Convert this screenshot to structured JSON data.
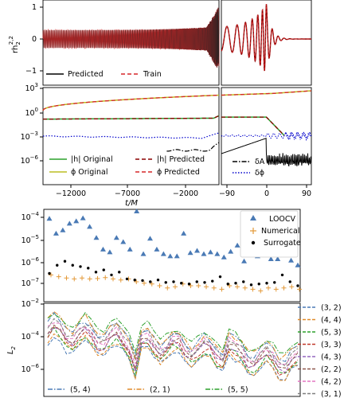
{
  "chart_data": [
    {
      "panel": "top-left",
      "type": "line",
      "ylabel": "rh_2^{2,2}",
      "ylim": [
        -1.5,
        1.4
      ],
      "yticks": [
        "1",
        "0",
        "−1"
      ],
      "series": [
        {
          "name": "Predicted",
          "style": "solid",
          "color": "#000000"
        },
        {
          "name": "Train",
          "style": "dashed",
          "color": "#d62728"
        }
      ]
    },
    {
      "panel": "top-right",
      "type": "line",
      "ylim": [
        -1.5,
        1.4
      ],
      "description_values": {
        "peak_amplitude": 1.1,
        "ringdown_after_t": 20
      }
    },
    {
      "panel": "middle-left",
      "type": "line",
      "yscale": "log",
      "ylim": [
        1e-08,
        1000.0
      ],
      "yticks": [
        "10^3",
        "10^0",
        "10^-3",
        "10^-6"
      ],
      "xticks": [
        "−12000",
        "−7000",
        "−2000"
      ],
      "xlabel": "t/M",
      "series": [
        {
          "name": "|h| Original",
          "style": "solid",
          "color": "#2ca02c"
        },
        {
          "name": "ϕ Original",
          "style": "solid",
          "color": "#bcbd22"
        },
        {
          "name": "|h| Predicted",
          "style": "dashed",
          "color": "#8b0000"
        },
        {
          "name": "ϕ Predicted",
          "style": "dashed",
          "color": "#d62728"
        }
      ]
    },
    {
      "panel": "middle-right",
      "type": "line",
      "yscale": "log",
      "xticks": [
        "−90",
        "0",
        "90"
      ],
      "series": [
        {
          "name": "δA",
          "style": "dashdot",
          "color": "#000000"
        },
        {
          "name": "δϕ",
          "style": "dotted",
          "color": "#0000cc"
        }
      ]
    },
    {
      "panel": "bottom-upper",
      "type": "scatter",
      "yscale": "log",
      "yticks": [
        "10^-4",
        "10^-5",
        "10^-6",
        "10^-7"
      ],
      "series": [
        {
          "name": "LOOCV",
          "marker": "triangle",
          "color": "#4a7ab5",
          "values": [
            9e-05,
            2e-05,
            2.8e-05,
            5.5e-05,
            7e-05,
            9.5e-05,
            4e-05,
            1.3e-05,
            4e-06,
            3e-06,
            1.3e-05,
            8.5e-06,
            4e-06,
            0.00019,
            2.5e-06,
            1.2e-05,
            4e-06,
            2.5e-06,
            2e-06,
            2e-06,
            2e-05,
            2.8e-06,
            3.5e-06,
            2.5e-06,
            3e-06,
            2.5e-06,
            1.8e-06,
            3.2e-06,
            6e-06,
            1.2e-06,
            4e-06,
            2e-06,
            6e-06,
            1.5e-06,
            1.5e-06,
            2.5e-06,
            1.3e-06,
            8e-07
          ]
        },
        {
          "name": "Numerical",
          "marker": "plus",
          "color": "#e39a3a",
          "values": [
            3e-07,
            2.5e-07,
            2.2e-07,
            2e-07,
            2.2e-07,
            2e-07,
            2.1e-07,
            2.3e-07,
            2e-07,
            1.8e-07,
            2e-07,
            1.5e-07,
            1.3e-07,
            1.2e-07,
            1e-07,
            8e-08,
            9e-08,
            1.2e-07,
            1e-07,
            1e-07,
            9e-08,
            8e-08,
            7e-08,
            1e-07,
            9e-08,
            8e-08,
            7e-08,
            6e-08,
            8e-08,
            7e-08,
            8e-08,
            9e-08,
            7e-08
          ]
        },
        {
          "name": "Surrogate",
          "marker": "dot",
          "color": "#000000",
          "values": [
            3.5e-07,
            8e-07,
            1.2e-06,
            8e-07,
            7e-07,
            6e-07,
            4e-07,
            5e-07,
            3e-07,
            4e-07,
            2e-07,
            1.8e-07,
            1.7e-07,
            1.5e-07,
            1.8e-07,
            1.4e-07,
            1.5e-07,
            1.3e-07,
            1.2e-07,
            1.5e-07,
            1.4e-07,
            1.6e-07,
            2.5e-07,
            1.2e-07,
            1.3e-07,
            1.5e-07,
            1.1e-07,
            1.2e-07,
            1.3e-07,
            1.4e-07,
            3e-07,
            1.5e-07,
            1e-07
          ]
        }
      ]
    },
    {
      "panel": "bottom-lower",
      "type": "line",
      "yscale": "log",
      "ylabel": "L_2",
      "yticks": [
        "10^-2",
        "10^-4",
        "10^-6"
      ],
      "series": [
        {
          "name": "(3, 2)",
          "color": "#4a7ab5",
          "style": "dashed"
        },
        {
          "name": "(4, 4)",
          "color": "#e08a2a",
          "style": "dashed"
        },
        {
          "name": "(5, 3)",
          "color": "#2ca02c",
          "style": "dashed"
        },
        {
          "name": "(3, 3)",
          "color": "#c0392b",
          "style": "dashed"
        },
        {
          "name": "(4, 3)",
          "color": "#9467bd",
          "style": "dashed"
        },
        {
          "name": "(2, 2)",
          "color": "#8c564b",
          "style": "dashed"
        },
        {
          "name": "(4, 2)",
          "color": "#e377c2",
          "style": "dashed"
        },
        {
          "name": "(3, 1)",
          "color": "#7f7f7f",
          "style": "dashed"
        },
        {
          "name": "(5, 4)",
          "color": "#4a7ab5",
          "style": "dashdot"
        },
        {
          "name": "(2, 1)",
          "color": "#e08a2a",
          "style": "dashdot"
        },
        {
          "name": "(5, 5)",
          "color": "#2ca02c",
          "style": "dashdot"
        }
      ]
    }
  ],
  "tex": {
    "rh_main": "rh",
    "rh_sub": "2",
    "rh_sup": "2,2",
    "ten": "10",
    "e3": "3",
    "e0": "0",
    "em3": "−3",
    "em6": "−6",
    "em4": "−4",
    "em5": "−5",
    "em7": "−7",
    "em2": "−2",
    "L": "L",
    "Lsub": "2"
  }
}
